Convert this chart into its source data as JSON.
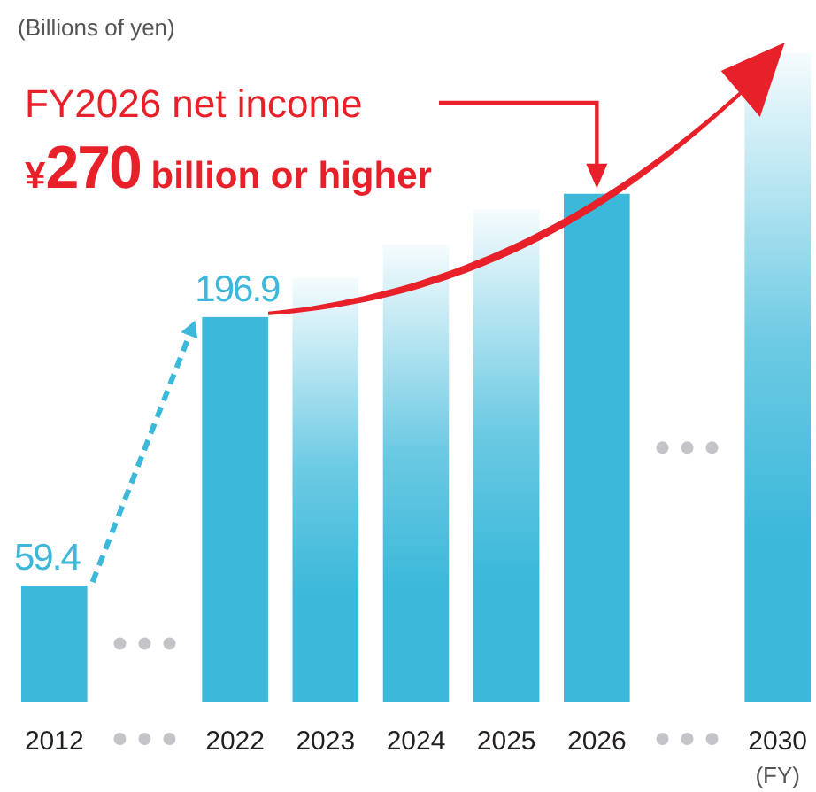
{
  "chart_data": {
    "type": "bar",
    "ylabel": "(Billions of yen)",
    "xlabel": "(FY)",
    "categories": [
      "2012",
      null,
      "2022",
      "2023",
      "2024",
      "2025",
      "2026",
      null,
      "2030"
    ],
    "values": [
      59.4,
      null,
      196.9,
      217,
      234,
      252,
      260,
      null,
      332
    ],
    "value_labels": [
      "59.4",
      null,
      "196.9",
      null,
      null,
      null,
      null,
      null,
      null
    ],
    "color": "#3bb8da",
    "annotations": [
      "FY2026 net income",
      "¥270 billion or higher"
    ]
  }
}
